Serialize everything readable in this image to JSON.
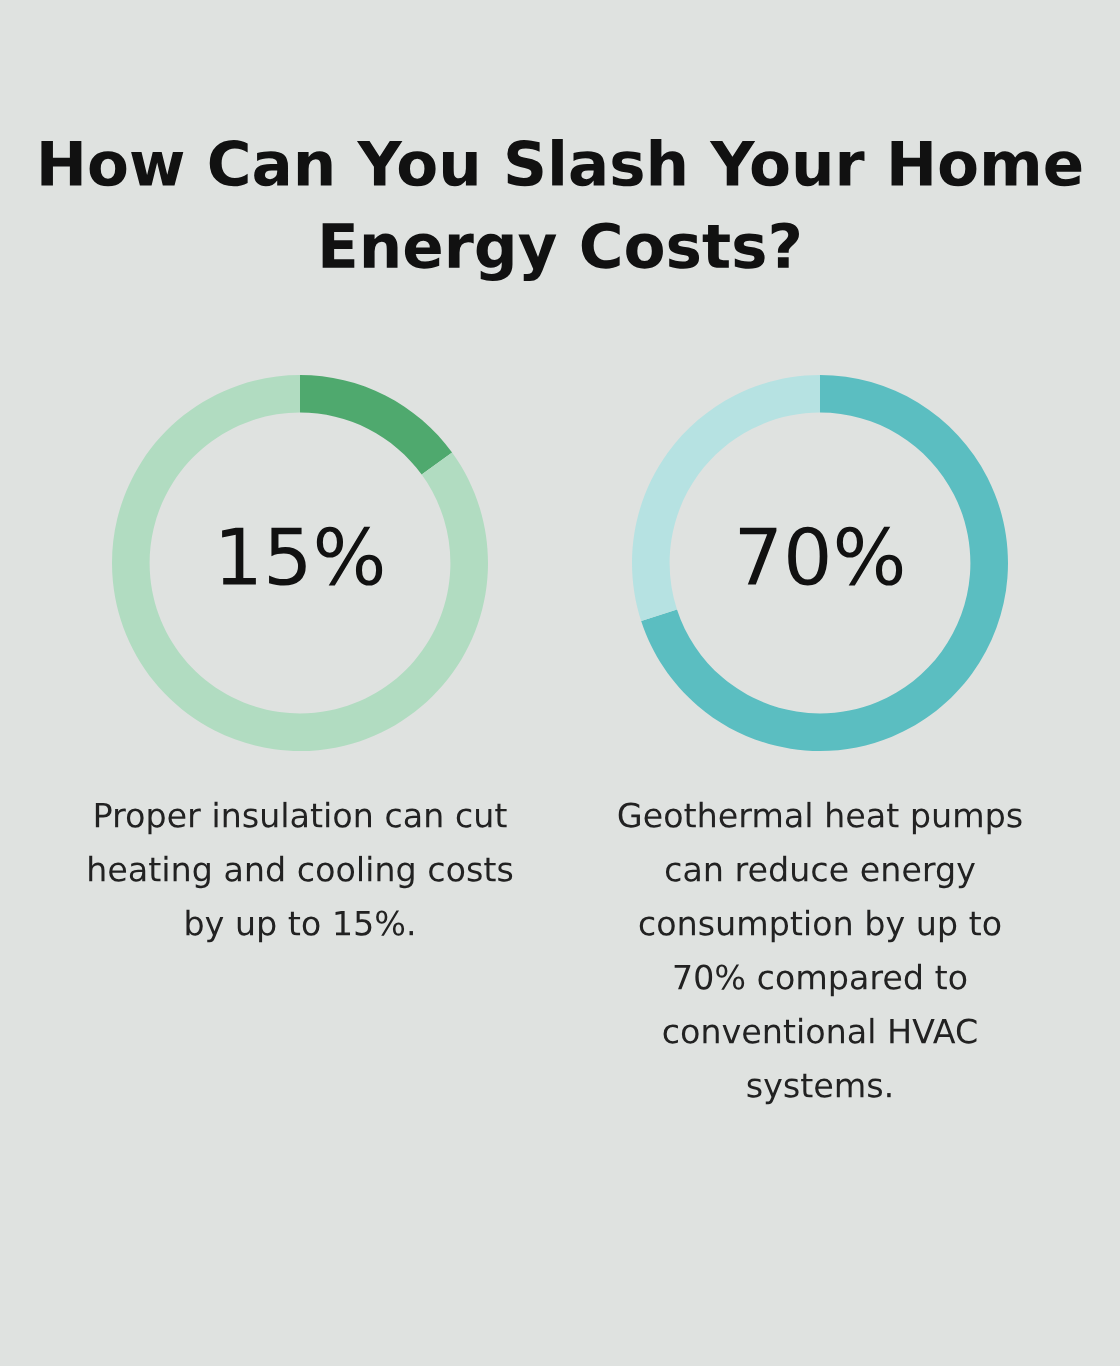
{
  "chart_data": [
    {
      "type": "donut",
      "title": "How Can You Slash Your Home Energy Costs?",
      "categories": [
        null,
        null
      ],
      "values": [
        15,
        85
      ],
      "colors": [
        "#4fa96e",
        "#b1dcc1"
      ],
      "value_labels": [
        "15%",
        null
      ],
      "annotations": [
        "Proper insulation can cut",
        "heating and cooling costs",
        "by up to 15%."
      ]
    },
    {
      "type": "donut",
      "categories": [
        null,
        null
      ],
      "values": [
        70,
        30
      ],
      "colors": [
        "#5bbec1",
        "#b6e2e2"
      ],
      "value_labels": [
        "70%",
        null
      ],
      "annotations": [
        "Geothermal heat pumps",
        "can reduce energy",
        "consumption by up to",
        "70% compared to",
        "conventional HVAC",
        "systems."
      ]
    }
  ]
}
